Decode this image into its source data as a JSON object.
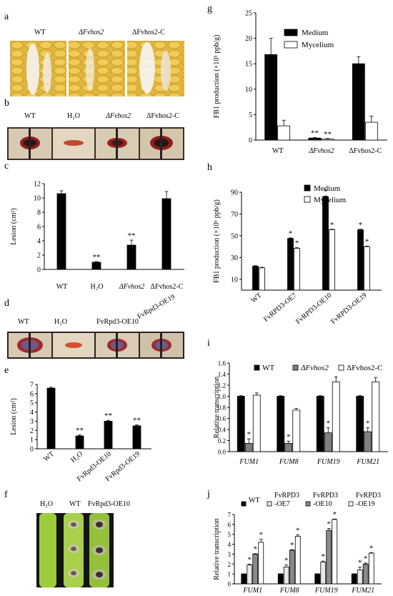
{
  "panels": {
    "a": {
      "letter": "a",
      "labels": [
        "WT",
        "ΔFvhos2",
        "ΔFvhos2-C"
      ]
    },
    "b": {
      "letter": "b",
      "labels": [
        "WT",
        "H₂O",
        "ΔFvhos2",
        "ΔFvhos2-C"
      ]
    },
    "d": {
      "letter": "d",
      "labels": [
        "WT",
        "H₂O",
        "FvRpd3-OE10",
        "FvRpd3-OE19"
      ]
    },
    "f": {
      "letter": "f",
      "labels": [
        "H₂O",
        "WT",
        "FvRpd3-OE10"
      ]
    }
  },
  "chart_data": [
    {
      "id": "c",
      "letter": "c",
      "type": "bar",
      "ylabel": "Lesion (cm²)",
      "ylim": [
        0,
        12
      ],
      "yticks": [
        0,
        2,
        4,
        6,
        8,
        10,
        12
      ],
      "categories": [
        "WT",
        "H₂O",
        "ΔFvhos2",
        "ΔFvhos2-C"
      ],
      "series": [
        {
          "values": [
            10.6,
            1.0,
            3.4,
            9.9
          ],
          "errors": [
            0.4,
            0.1,
            0.7,
            1.0
          ],
          "marks": [
            "",
            "**",
            "**",
            ""
          ],
          "color": "#000000"
        }
      ]
    },
    {
      "id": "e",
      "letter": "e",
      "type": "bar",
      "ylabel": "Lesion (cm²)",
      "ylim": [
        0,
        7
      ],
      "yticks": [
        0,
        1,
        2,
        3,
        4,
        5,
        6,
        7
      ],
      "categories": [
        "WT",
        "H₂O",
        "FvRpd3-OE10",
        "FvRpd3-OE19"
      ],
      "series": [
        {
          "values": [
            6.6,
            1.4,
            3.0,
            2.5
          ],
          "errors": [
            0.1,
            0.1,
            0.1,
            0.1
          ],
          "marks": [
            "",
            "**",
            "**",
            "**"
          ],
          "color": "#000000"
        }
      ]
    },
    {
      "id": "g",
      "letter": "g",
      "type": "bar",
      "ylabel": "FB1 production (×10⁵ ppb/g)",
      "ylim": [
        0,
        25
      ],
      "yticks": [
        0,
        5,
        10,
        15,
        20,
        25
      ],
      "categories": [
        "WT",
        "ΔFvhos2",
        "ΔFvhos2-C"
      ],
      "series": [
        {
          "name": "Medium",
          "values": [
            16.8,
            0.4,
            15.0
          ],
          "errors": [
            3.2,
            0.1,
            1.4
          ],
          "marks": [
            "",
            "**",
            ""
          ],
          "color": "#000000"
        },
        {
          "name": "Mycelium",
          "values": [
            2.8,
            0.2,
            3.5
          ],
          "errors": [
            1.1,
            0.1,
            1.2
          ],
          "marks": [
            "",
            "**",
            ""
          ],
          "color": "#ffffff"
        }
      ]
    },
    {
      "id": "h",
      "letter": "h",
      "type": "bar",
      "ylabel": "FB1 production (×10⁶ ppb/g)",
      "ylim": [
        0,
        90
      ],
      "yticks": [
        10,
        30,
        50,
        70,
        90
      ],
      "categories": [
        "WT",
        "FvRPD3-OE7",
        "FvRPD3-OE10",
        "FvRPD3-OE19"
      ],
      "series": [
        {
          "name": "Medium",
          "values": [
            22,
            47.5,
            86,
            55.5
          ],
          "errors": [
            0.5,
            0.5,
            0.5,
            0.5
          ],
          "marks": [
            "",
            "*",
            "*",
            "*"
          ],
          "color": "#000000"
        },
        {
          "name": "Mycelium",
          "values": [
            20.5,
            38.5,
            55.5,
            40
          ],
          "errors": [
            0.5,
            0.5,
            0.5,
            0.5
          ],
          "marks": [
            "",
            "*",
            "*",
            "*"
          ],
          "color": "#ffffff"
        }
      ]
    },
    {
      "id": "i",
      "letter": "i",
      "type": "bar",
      "ylabel": "Relative transcription",
      "ylim": [
        0,
        1.6
      ],
      "yticks": [
        0.0,
        0.2,
        0.4,
        0.6,
        0.8,
        1.0,
        1.2,
        1.4,
        1.6
      ],
      "categories": [
        "FUM1",
        "FUM8",
        "FUM19",
        "FUM21"
      ],
      "series": [
        {
          "name": "WT",
          "values": [
            1.0,
            1.0,
            1.0,
            1.0
          ],
          "errors": [
            0.01,
            0.01,
            0.01,
            0.01
          ],
          "marks": [
            "",
            "",
            "",
            ""
          ],
          "color": "#000000"
        },
        {
          "name": "ΔFvhos2",
          "values": [
            0.15,
            0.15,
            0.34,
            0.36
          ],
          "errors": [
            0.08,
            0.04,
            0.09,
            0.07
          ],
          "marks": [
            "*",
            "*",
            "*",
            "*"
          ],
          "color": "#808080"
        },
        {
          "name": "ΔFvhos2-C",
          "values": [
            1.02,
            0.75,
            1.26,
            1.26
          ],
          "errors": [
            0.04,
            0.03,
            0.09,
            0.08
          ],
          "marks": [
            "",
            "",
            "",
            ""
          ],
          "color": "#ffffff"
        }
      ]
    },
    {
      "id": "j",
      "letter": "j",
      "type": "bar",
      "ylabel": "Relative transcription",
      "ylim": [
        0,
        7
      ],
      "yticks": [
        0,
        1,
        2,
        3,
        4,
        5,
        6,
        7
      ],
      "categories": [
        "FUM1",
        "FUM8",
        "FUM19",
        "FUM21"
      ],
      "series": [
        {
          "name": "WT",
          "values": [
            1.0,
            1.0,
            1.0,
            1.0
          ],
          "errors": [
            0.02,
            0.02,
            0.02,
            0.02
          ],
          "marks": [
            "",
            "",
            "",
            ""
          ],
          "color": "#000000"
        },
        {
          "name": "FvRPD3-OE7",
          "values": [
            1.9,
            1.7,
            2.2,
            1.4
          ],
          "errors": [
            0.1,
            0.2,
            0.1,
            0.3
          ],
          "marks": [
            "*",
            "*",
            "*",
            "*"
          ],
          "color": "#e8e8e8"
        },
        {
          "name": "FvRPD3-OE10",
          "values": [
            3.0,
            3.4,
            5.4,
            2.0
          ],
          "errors": [
            0.05,
            0.05,
            0.2,
            0.1
          ],
          "marks": [
            "*",
            "*",
            "*",
            "*"
          ],
          "color": "#8a8a8a"
        },
        {
          "name": "FvRPD3-OE19",
          "values": [
            4.2,
            4.8,
            6.5,
            3.1
          ],
          "errors": [
            0.3,
            0.15,
            0.05,
            0.05
          ],
          "marks": [
            "*",
            "*",
            "*",
            "*"
          ],
          "color": "#ffffff"
        }
      ]
    }
  ]
}
